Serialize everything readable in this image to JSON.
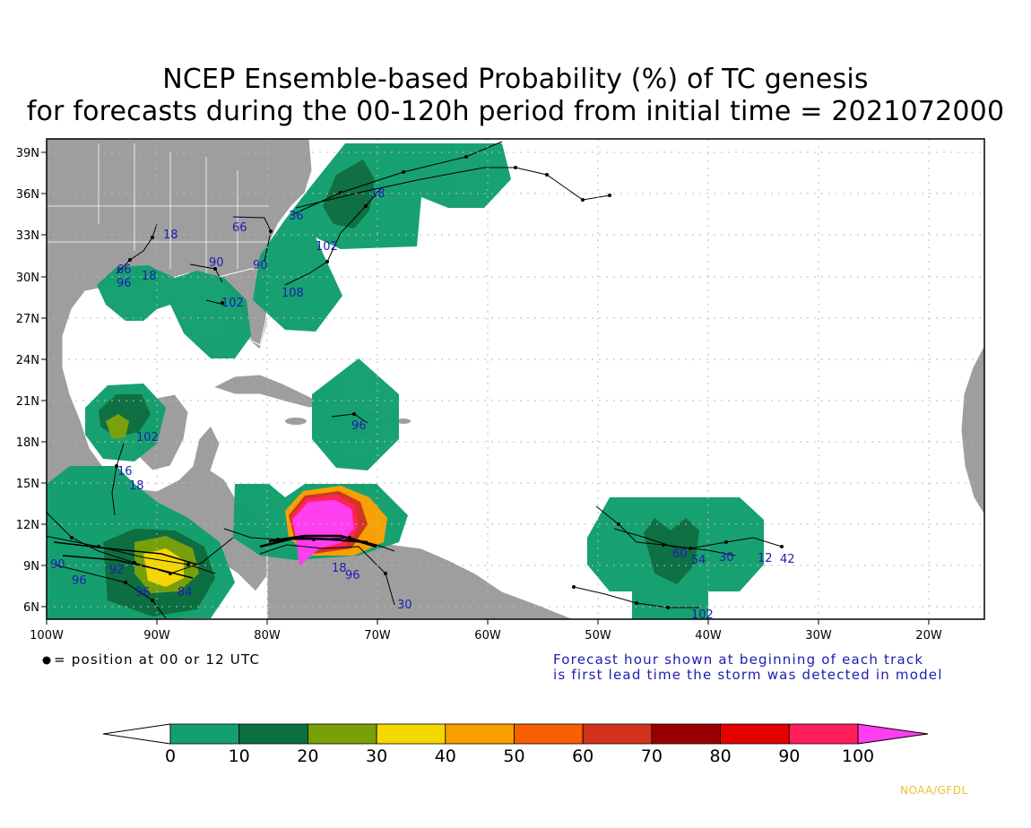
{
  "title_line1": "NCEP Ensemble-based Probability (%) of TC genesis",
  "title_line2": "for forecasts during the 00-120h period from initial time = 2021072000",
  "lat_labels": [
    "39N",
    "36N",
    "33N",
    "30N",
    "27N",
    "24N",
    "21N",
    "18N",
    "15N",
    "12N",
    "9N",
    "6N"
  ],
  "lon_labels": [
    "100W",
    "90W",
    "80W",
    "70W",
    "60W",
    "50W",
    "40W",
    "30W",
    "20W"
  ],
  "dot_legend": "= position at 00 or 12 UTC",
  "forecast_note_line1": "Forecast hour shown at beginning of each track",
  "forecast_note_line2": "is first lead time the storm was detected in model",
  "colorbar": {
    "labels": [
      "0",
      "10",
      "20",
      "30",
      "40",
      "50",
      "60",
      "70",
      "80",
      "90",
      "100"
    ],
    "colors": [
      "#ffffff",
      "#14a06e",
      "#0b6e40",
      "#77a00a",
      "#f5d800",
      "#f7a000",
      "#f75f00",
      "#d2321c",
      "#9b0000",
      "#e60000",
      "#ff1e5a",
      "#ff3cf0"
    ]
  },
  "track_hour_labels": [
    "18",
    "36",
    "66",
    "90",
    "102",
    "108",
    "96",
    "18",
    "66",
    "18",
    "102",
    "90",
    "102",
    "96",
    "16",
    "18",
    "90",
    "96",
    "92",
    "96",
    "84",
    "30",
    "54",
    "30",
    "42",
    "102",
    "18",
    "60",
    "12"
  ],
  "credit": "NOAA/GFDL",
  "colors": {
    "land": "#9e9e9e",
    "ocean": "#ffffff",
    "label_blue": "#1c1cb4",
    "credit": "#e8c02c"
  }
}
